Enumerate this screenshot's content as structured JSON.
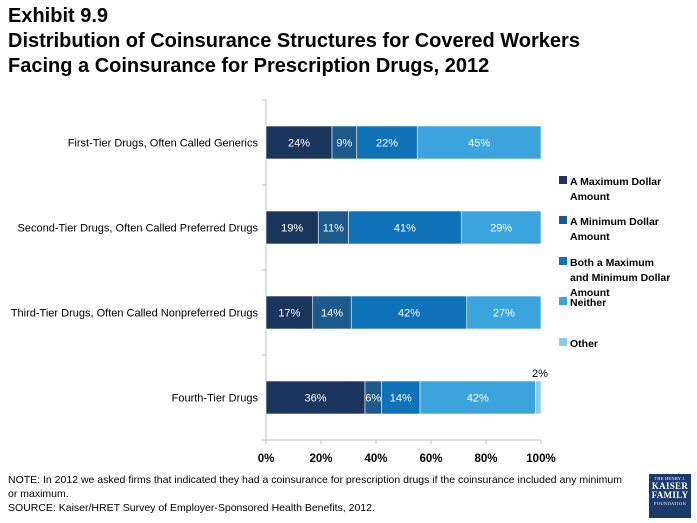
{
  "exhibit": "Exhibit 9.9",
  "title_lines": [
    "Distribution of Coinsurance Structures for Covered Workers",
    "Facing a Coinsurance for Prescription Drugs, 2012"
  ],
  "chart_data": {
    "type": "bar",
    "orientation": "horizontal",
    "stacked": true,
    "categories": [
      "First-Tier Drugs, Often Called Generics",
      "Second-Tier Drugs, Often Called Preferred Drugs",
      "Third-Tier Drugs, Often Called Nonpreferred Drugs",
      "Fourth-Tier Drugs"
    ],
    "series": [
      {
        "name": "A Maximum Dollar Amount",
        "color": "#1b365d",
        "values": [
          24,
          19,
          17,
          36
        ]
      },
      {
        "name": "A Minimum Dollar Amount",
        "color": "#1c5a8c",
        "values": [
          9,
          11,
          14,
          6
        ]
      },
      {
        "name": "Both a Maximum and Minimum Dollar Amount",
        "color": "#0e72b9",
        "values": [
          22,
          41,
          42,
          14
        ]
      },
      {
        "name": "Neither",
        "color": "#3ba4dc",
        "values": [
          45,
          29,
          27,
          42
        ]
      },
      {
        "name": "Other",
        "color": "#86cdf0",
        "values": [
          0,
          0,
          0,
          2
        ]
      }
    ],
    "data_labels": [
      [
        "24%",
        "9%",
        "22%",
        "45%",
        ""
      ],
      [
        "19%",
        "11%",
        "41%",
        "29%",
        ""
      ],
      [
        "17%",
        "14%",
        "42%",
        "27%",
        ""
      ],
      [
        "36%",
        "6%",
        "14%",
        "42%",
        "2%"
      ]
    ],
    "xlim": [
      0,
      100
    ],
    "x_ticks": [
      "0%",
      "20%",
      "40%",
      "60%",
      "80%",
      "100%"
    ],
    "xlabel": "",
    "ylabel": "",
    "grid": false,
    "legend_position": "right",
    "legend_labels": [
      [
        "A Maximum Dollar",
        "Amount"
      ],
      [
        "A Minimum Dollar",
        "Amount"
      ],
      [
        "Both a Maximum",
        "and Minimum Dollar",
        "Amount"
      ],
      [
        "Neither"
      ],
      [
        "Other"
      ]
    ]
  },
  "note": "NOTE: In 2012 we asked firms that indicated they had a coinsurance for prescription drugs if the coinsurance included any minimum or maximum.",
  "source": "SOURCE: Kaiser/HRET Survey of Employer-Sponsored Health Benefits, 2012.",
  "logo": {
    "line1": "THE HENRY J.",
    "line2": "KAISER",
    "line3": "FAMILY",
    "line4": "FOUNDATION"
  }
}
